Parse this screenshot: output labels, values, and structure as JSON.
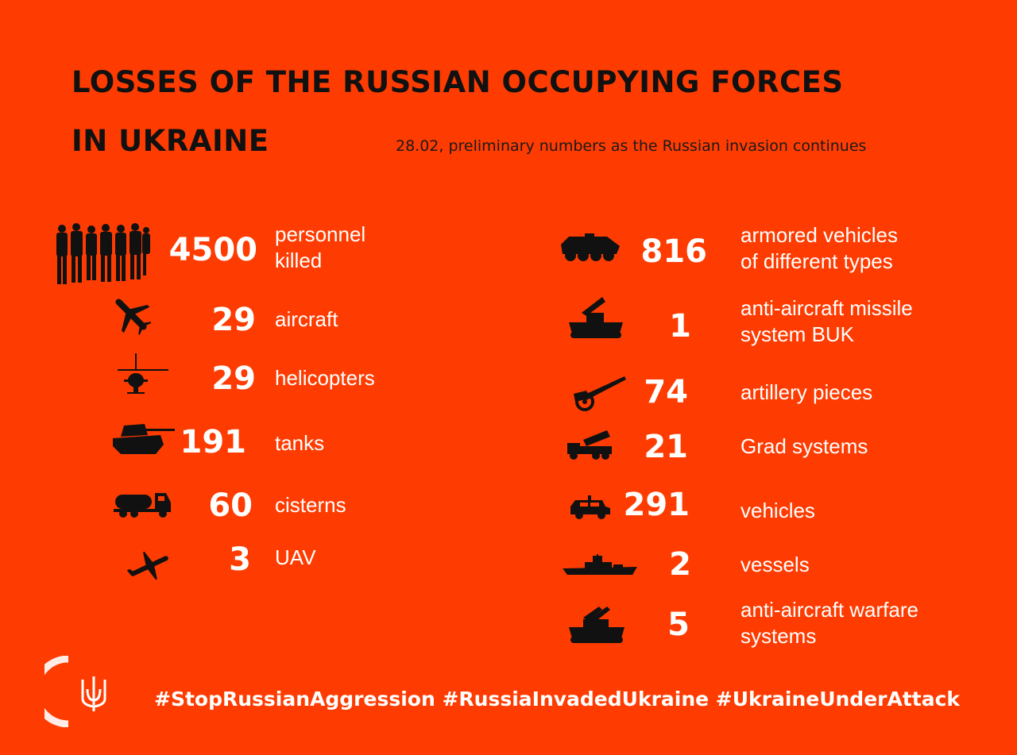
{
  "header": {
    "title_line1": "LOSSES OF THE RUSSIAN OCCUPYING FORCES",
    "title_line2": "IN UKRAINE",
    "subtitle": "28.02, preliminary numbers as the Russian invasion continues"
  },
  "left_items": [
    {
      "icon": "soldiers-icon",
      "number": "4500",
      "label_line1": "personnel",
      "label_line2": "killed"
    },
    {
      "icon": "aircraft-icon",
      "number": "29",
      "label_line1": "aircraft",
      "label_line2": ""
    },
    {
      "icon": "helicopter-icon",
      "number": "29",
      "label_line1": "helicopters",
      "label_line2": ""
    },
    {
      "icon": "tank-icon",
      "number": "191",
      "label_line1": "tanks",
      "label_line2": ""
    },
    {
      "icon": "cistern-truck-icon",
      "number": "60",
      "label_line1": "cisterns",
      "label_line2": ""
    },
    {
      "icon": "uav-icon",
      "number": "3",
      "label_line1": "UAV",
      "label_line2": ""
    }
  ],
  "right_items": [
    {
      "icon": "armored-vehicle-icon",
      "number": "816",
      "label_line1": "armored vehicles",
      "label_line2": "of different types"
    },
    {
      "icon": "buk-missile-system-icon",
      "number": "1",
      "label_line1": "anti-aircraft missile",
      "label_line2": "system BUK"
    },
    {
      "icon": "artillery-icon",
      "number": "74",
      "label_line1": "artillery pieces",
      "label_line2": ""
    },
    {
      "icon": "grad-system-icon",
      "number": "21",
      "label_line1": "Grad systems",
      "label_line2": ""
    },
    {
      "icon": "vehicle-icon",
      "number": "291",
      "label_line1": "vehicles",
      "label_line2": ""
    },
    {
      "icon": "vessel-icon",
      "number": "2",
      "label_line1": "vessels",
      "label_line2": ""
    },
    {
      "icon": "anti-aircraft-warfare-icon",
      "number": "5",
      "label_line1": "anti-aircraft warfare",
      "label_line2": "systems"
    }
  ],
  "footer": {
    "hashtags": "#StopRussianAggression #RussiaInvadedUkraine #UkraineUnderAttack",
    "logo": "ukraine-trident-icon"
  },
  "colors": {
    "background": "#fe3c01",
    "title": "#111111",
    "value_text": "#ffffff",
    "icon": "#111111"
  }
}
